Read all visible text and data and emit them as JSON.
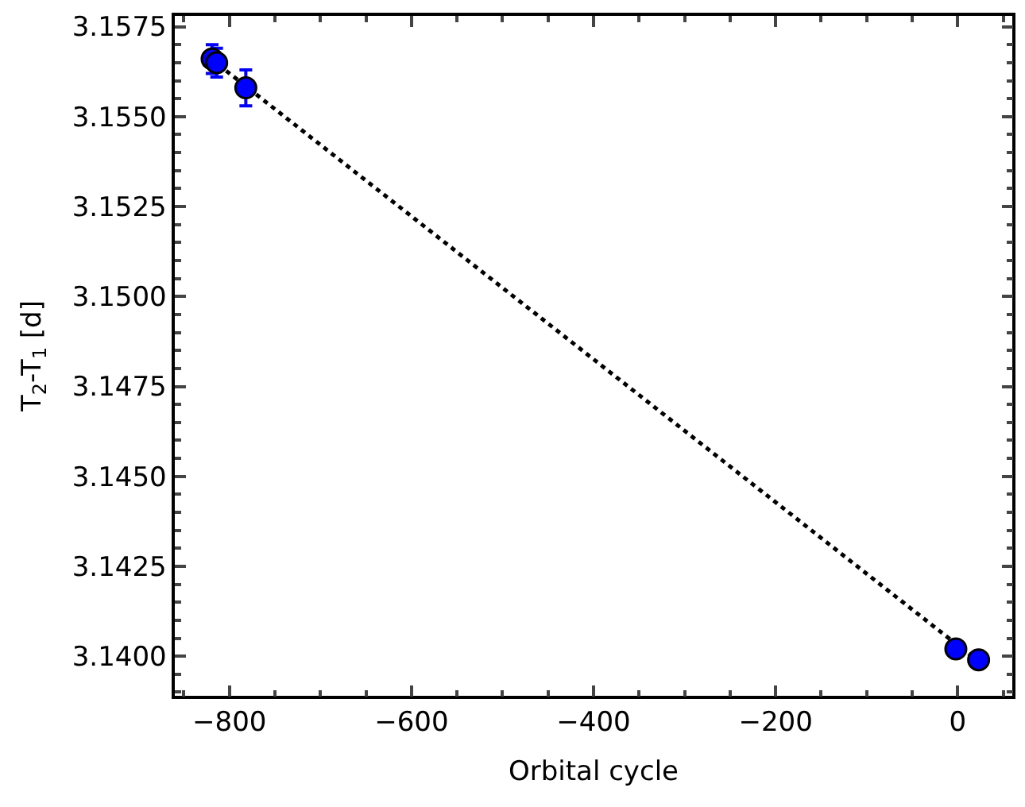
{
  "chart_data": {
    "type": "scatter",
    "xlabel": "Orbital cycle",
    "ylabel": "T$_{2}$-T$_{1}$ [d]",
    "xlim": [
      -860,
      60
    ],
    "xticks": [
      -800,
      -600,
      -400,
      -200,
      0
    ],
    "ylim": [
      3.1389,
      3.1578
    ],
    "yticks": [
      {
        "value": 3.14,
        "label": "3.1400"
      },
      3.1425,
      {
        "value": 3.145,
        "label": "3.1450"
      },
      3.1475,
      {
        "value": 3.15,
        "label": "3.1500"
      },
      3.1525,
      {
        "value": 3.155,
        "label": "3.1550"
      },
      3.1575
    ],
    "series": [
      {
        "type": "line",
        "color": "#000000",
        "line_style": "dotted",
        "marker": "none",
        "x": [
          -820,
          23
        ],
        "values": [
          3.1566,
          3.13985
        ]
      },
      {
        "color": "#0000ff",
        "marker": "circle",
        "x": [
          -819,
          -814,
          -782,
          -2,
          23
        ],
        "values": [
          3.1566,
          3.1565,
          3.1558,
          3.1402,
          3.1399
        ],
        "errors": [
          0.0004,
          0.0004,
          0.0005,
          null,
          null
        ]
      }
    ]
  }
}
